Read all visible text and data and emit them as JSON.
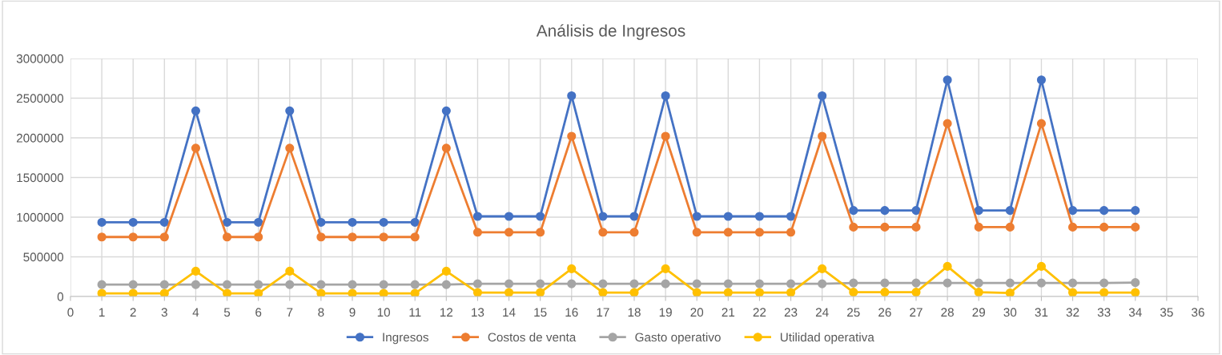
{
  "chart_data": {
    "type": "line",
    "title": "Análisis de Ingresos",
    "x": [
      1,
      2,
      3,
      4,
      5,
      6,
      7,
      8,
      9,
      10,
      11,
      12,
      13,
      14,
      15,
      16,
      17,
      18,
      19,
      20,
      21,
      22,
      23,
      24,
      25,
      26,
      27,
      28,
      29,
      30,
      31,
      32,
      33,
      34
    ],
    "series": [
      {
        "name": "Ingresos",
        "color": "#4472c4",
        "values": [
          935000,
          935000,
          935000,
          2340000,
          935000,
          935000,
          2340000,
          935000,
          935000,
          935000,
          935000,
          2340000,
          1010000,
          1010000,
          1010000,
          2530000,
          1010000,
          1010000,
          2530000,
          1010000,
          1010000,
          1010000,
          1010000,
          2530000,
          1085000,
          1085000,
          1085000,
          2730000,
          1085000,
          1085000,
          2730000,
          1085000,
          1085000,
          1085000
        ]
      },
      {
        "name": "Costos de venta",
        "color": "#ed7d31",
        "values": [
          750000,
          750000,
          750000,
          1870000,
          750000,
          750000,
          1870000,
          750000,
          750000,
          750000,
          750000,
          1870000,
          810000,
          810000,
          810000,
          2020000,
          810000,
          810000,
          2020000,
          810000,
          810000,
          810000,
          810000,
          2020000,
          875000,
          875000,
          875000,
          2180000,
          875000,
          875000,
          2180000,
          875000,
          875000,
          875000
        ]
      },
      {
        "name": "Gasto operativo",
        "color": "#a5a5a5",
        "values": [
          150000,
          150000,
          150000,
          150000,
          150000,
          150000,
          150000,
          150000,
          150000,
          150000,
          150000,
          150000,
          160000,
          160000,
          160000,
          160000,
          160000,
          160000,
          160000,
          160000,
          160000,
          160000,
          160000,
          160000,
          170000,
          170000,
          170000,
          170000,
          170000,
          170000,
          170000,
          170000,
          170000,
          175000
        ]
      },
      {
        "name": "Utilidad operativa",
        "color": "#ffc000",
        "values": [
          40000,
          40000,
          40000,
          320000,
          40000,
          40000,
          320000,
          40000,
          40000,
          40000,
          40000,
          320000,
          50000,
          50000,
          50000,
          350000,
          50000,
          50000,
          350000,
          50000,
          50000,
          50000,
          50000,
          350000,
          55000,
          55000,
          55000,
          380000,
          55000,
          45000,
          380000,
          50000,
          50000,
          50000
        ]
      }
    ],
    "xlim": [
      0,
      36
    ],
    "xticks": [
      0,
      1,
      2,
      3,
      4,
      5,
      6,
      7,
      8,
      9,
      10,
      11,
      12,
      13,
      14,
      15,
      16,
      17,
      18,
      19,
      20,
      21,
      22,
      23,
      24,
      25,
      26,
      27,
      28,
      29,
      30,
      31,
      32,
      33,
      34,
      35,
      36
    ],
    "ylim": [
      0,
      3000000
    ],
    "yticks": [
      0,
      500000,
      1000000,
      1500000,
      2000000,
      2500000,
      3000000
    ],
    "grid": true,
    "legend": "bottom",
    "marker": "circle",
    "line_style": "solid"
  }
}
